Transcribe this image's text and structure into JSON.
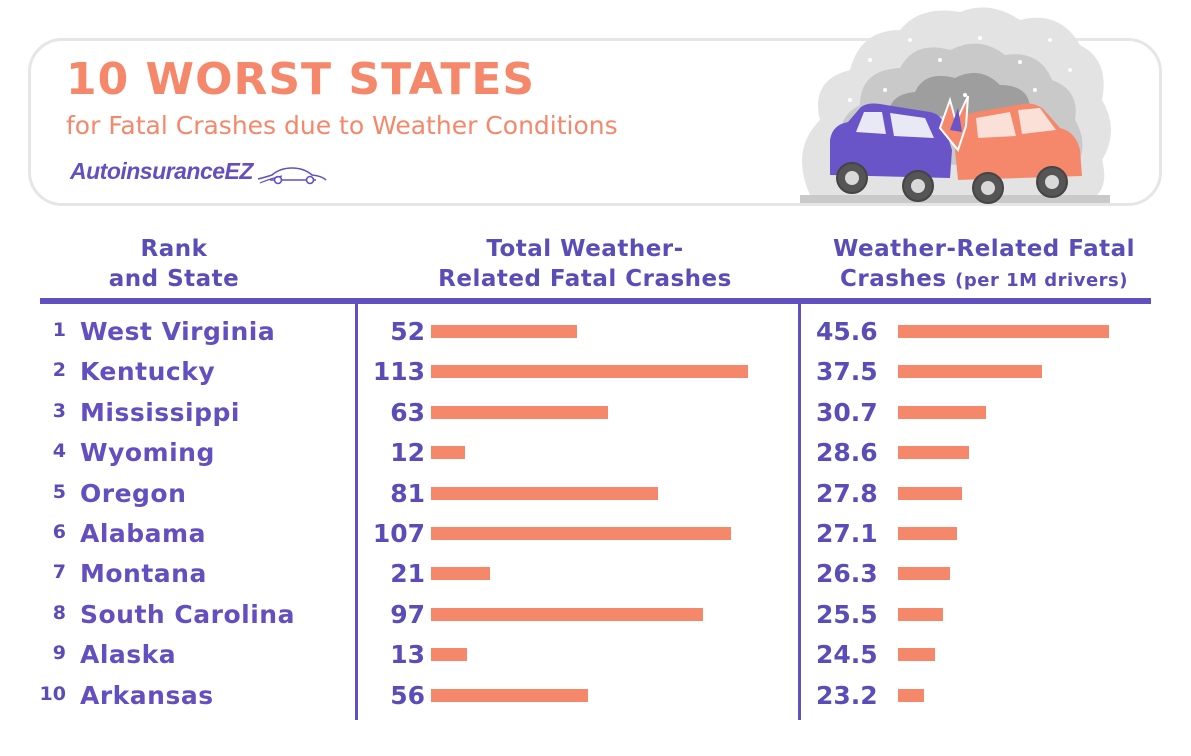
{
  "header": {
    "title": "10 WORST STATES",
    "subtitle": "for Fatal Crashes due to Weather Conditions",
    "brand": "AutoinsuranceEZ"
  },
  "columns": {
    "rank_line1": "Rank",
    "rank_line2": "and State",
    "total_line1": "Total Weather-",
    "total_line2": "Related Fatal Crashes",
    "rate_line1": "Weather-Related Fatal",
    "rate_line2": "Crashes",
    "rate_unit": "(per 1M drivers)"
  },
  "colors": {
    "title": "#f5876a",
    "bar": "#f5876a",
    "text": "#5b4db8",
    "rule": "#6350c0"
  },
  "chart_data": {
    "type": "bar",
    "orientation": "horizontal",
    "categories": [
      "West Virginia",
      "Kentucky",
      "Mississippi",
      "Wyoming",
      "Oregon",
      "Alabama",
      "Montana",
      "South Carolina",
      "Alaska",
      "Arkansas"
    ],
    "ranks": [
      "1",
      "2",
      "3",
      "4",
      "5",
      "6",
      "7",
      "8",
      "9",
      "10"
    ],
    "series": [
      {
        "name": "Total Weather-Related Fatal Crashes",
        "values": [
          52,
          113,
          63,
          12,
          81,
          107,
          21,
          97,
          13,
          56
        ]
      },
      {
        "name": "Weather-Related Fatal Crashes (per 1M drivers)",
        "values": [
          45.6,
          37.5,
          30.7,
          28.6,
          27.8,
          27.1,
          26.3,
          25.5,
          24.5,
          23.2
        ]
      }
    ],
    "value_labels_1": [
      "52",
      "113",
      "63",
      "12",
      "81",
      "107",
      "21",
      "97",
      "13",
      "56"
    ],
    "value_labels_2": [
      "45.6",
      "37.5",
      "30.7",
      "28.6",
      "27.8",
      "27.1",
      "26.3",
      "25.5",
      "24.5",
      "23.2"
    ]
  }
}
